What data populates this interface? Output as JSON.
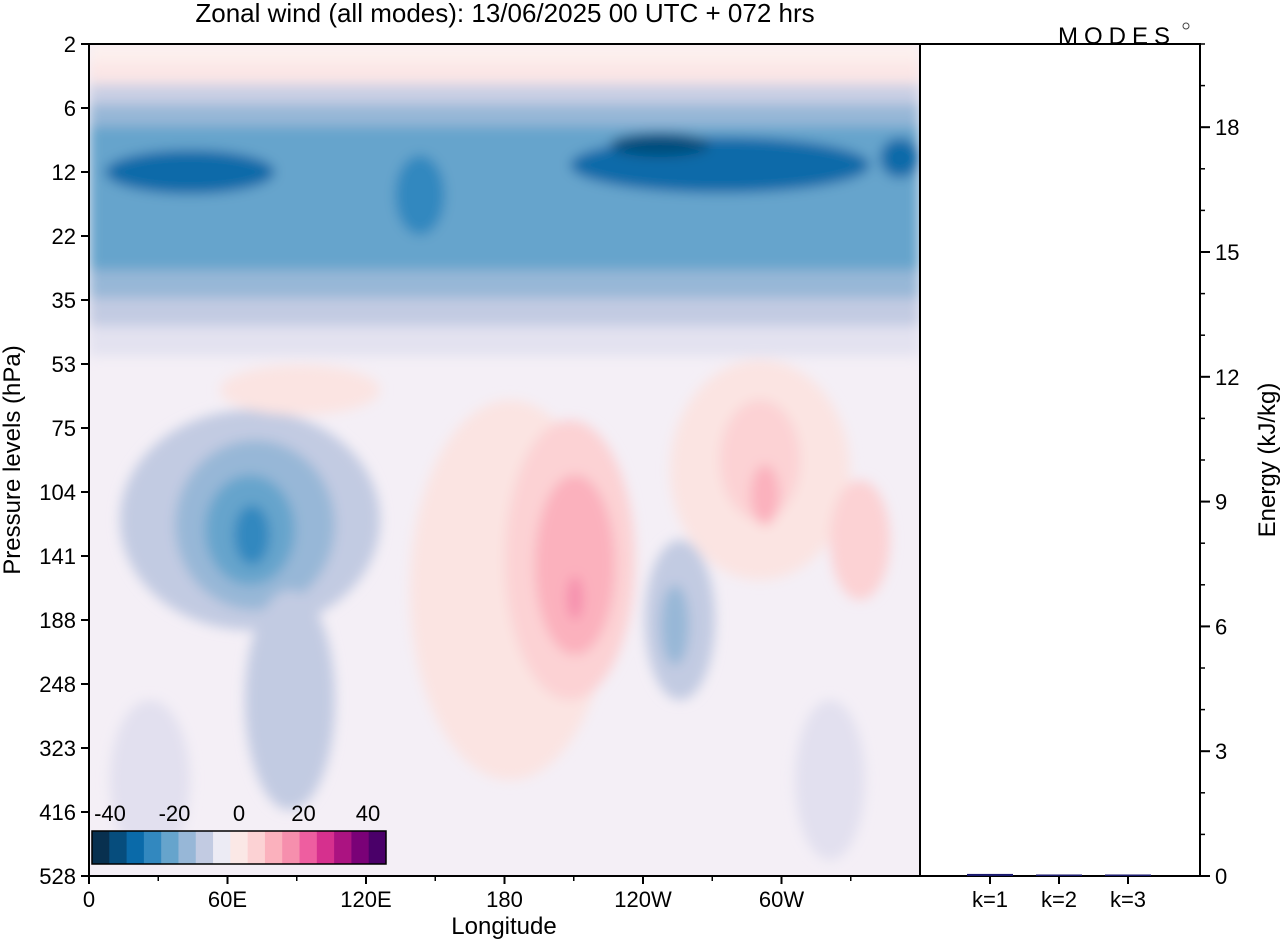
{
  "chart_data": [
    {
      "type": "heatmap",
      "title": "Zonal wind (all modes):  13/06/2025  00 UTC  + 072 hrs",
      "xlabel": "Longitude",
      "ylabel": "Pressure levels (hPa)",
      "x_ticks": [
        "0",
        "60E",
        "120E",
        "180",
        "120W",
        "60W"
      ],
      "x_tick_degrees": [
        0,
        60,
        120,
        180,
        240,
        300
      ],
      "x_range_degrees": [
        0,
        360
      ],
      "y_ticks": [
        "2",
        "6",
        "12",
        "22",
        "35",
        "53",
        "75",
        "104",
        "141",
        "188",
        "248",
        "323",
        "416",
        "528"
      ],
      "colorbar": {
        "tick_labels": [
          "-40",
          "-20",
          "0",
          "20",
          "40"
        ],
        "colors": [
          "#08304f",
          "#064d7d",
          "#0a6aa9",
          "#3288bf",
          "#66a4cc",
          "#97b7d7",
          "#c2cbe2",
          "#ecebf4",
          "#fbe8e6",
          "#fcd2d4",
          "#fbb1bd",
          "#f68fad",
          "#ee5ea0",
          "#d6308e",
          "#ab1381",
          "#7a0177",
          "#4a0069"
        ]
      },
      "features": [
        {
          "x": 45,
          "y": 10,
          "value": -30
        },
        {
          "x": 255,
          "y": 9,
          "value": -38
        },
        {
          "x": 70,
          "y": 130,
          "value": -30
        },
        {
          "x": 210,
          "y": 160,
          "value": 16
        },
        {
          "x": 255,
          "y": 170,
          "value": -10
        }
      ]
    },
    {
      "type": "bar",
      "ylabel": "Energy (kJ/kg)",
      "ylim": [
        0,
        20
      ],
      "y_ticks": [
        "0",
        "3",
        "6",
        "9",
        "12",
        "15",
        "18"
      ],
      "categories": [
        "k=1",
        "k=2",
        "k=3"
      ],
      "values": [
        0.05,
        0.03,
        0.01
      ]
    }
  ],
  "branding": {
    "logo_text": "MODES"
  }
}
